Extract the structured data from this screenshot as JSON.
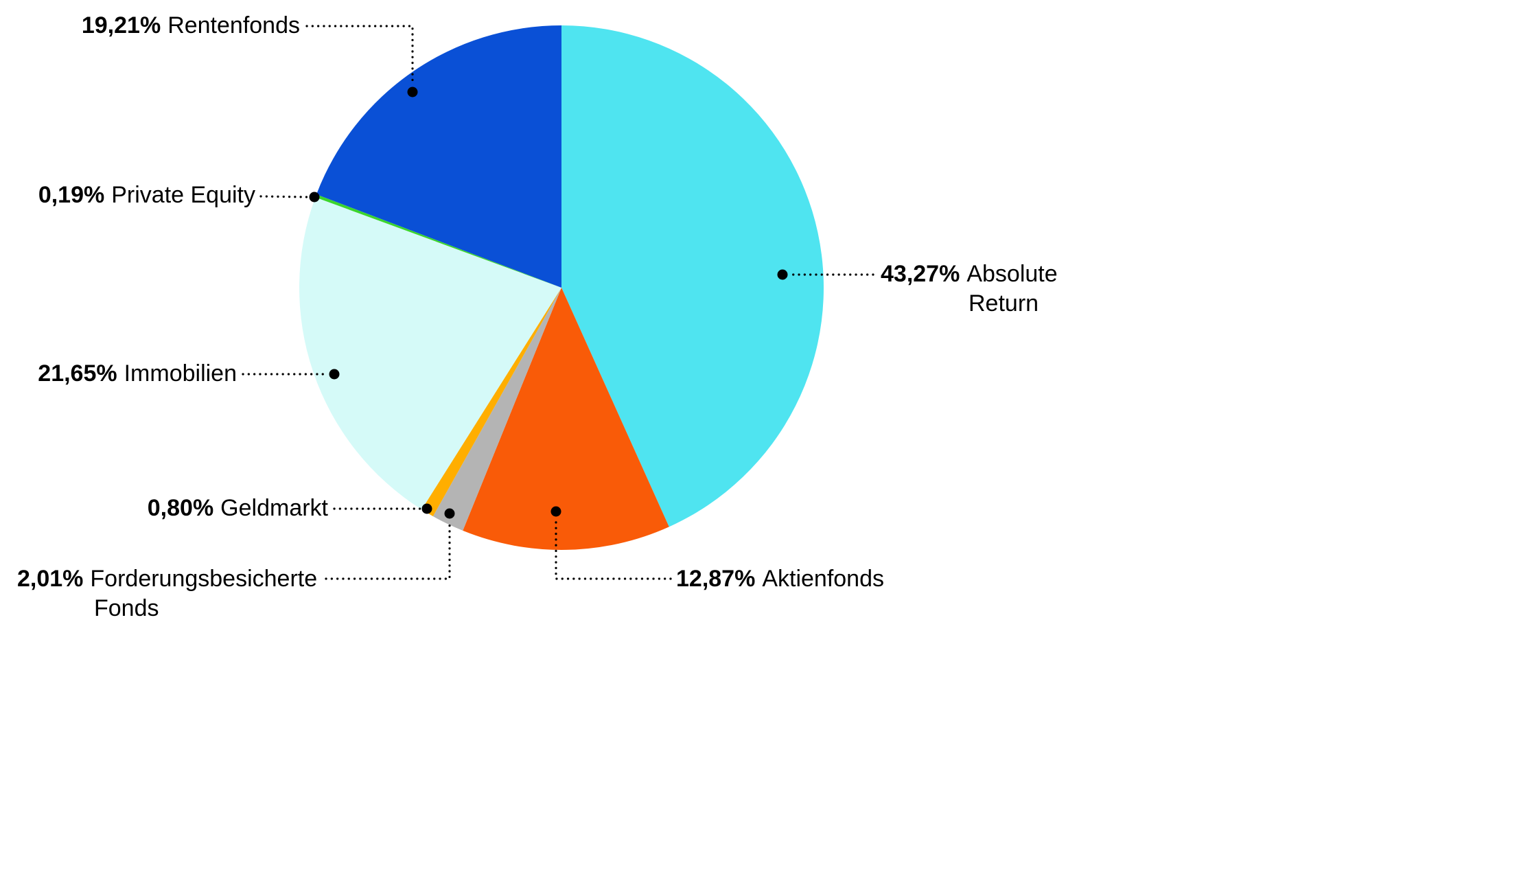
{
  "page": {
    "background": "#ffffff"
  },
  "chart_data": {
    "type": "pie",
    "title": "",
    "legend_position": "callout-labels",
    "start_angle_deg": 0,
    "direction": "clockwise",
    "slices": [
      {
        "name": "Absolute Return",
        "percent_label": "43,27%",
        "value": 43.27,
        "color": "#4FE4F0"
      },
      {
        "name": "Aktienfonds",
        "percent_label": "12,87%",
        "value": 12.87,
        "color": "#F95B08"
      },
      {
        "name": "Forderungsbesicherte Fonds",
        "percent_label": "2,01%",
        "value": 2.01,
        "color": "#B4B4B4"
      },
      {
        "name": "Geldmarkt",
        "percent_label": "0,80%",
        "value": 0.8,
        "color": "#FFAE00"
      },
      {
        "name": "Immobilien",
        "percent_label": "21,65%",
        "value": 21.65,
        "color": "#D5FAF8"
      },
      {
        "name": "Private Equity",
        "percent_label": "0,19%",
        "value": 0.19,
        "color": "#3CD52D"
      },
      {
        "name": "Rentenfonds",
        "percent_label": "19,21%",
        "value": 19.21,
        "color": "#0A50D6"
      }
    ],
    "leader_line_color": "#000000",
    "label_text_color": "#000000"
  },
  "callouts": [
    {
      "percent": "19,21%",
      "line1": "Rentenfonds"
    },
    {
      "percent": "0,19%",
      "line1": "Private Equity"
    },
    {
      "percent": "21,65%",
      "line1": "Immobilien"
    },
    {
      "percent": "0,80%",
      "line1": "Geldmarkt"
    },
    {
      "percent": "2,01%",
      "line1": "Forderungsbesicherte",
      "line2": "Fonds"
    },
    {
      "percent": "12,87%",
      "line1": "Aktienfonds"
    },
    {
      "percent": "43,27%",
      "line1": "Absolute",
      "line2": "Return"
    }
  ]
}
